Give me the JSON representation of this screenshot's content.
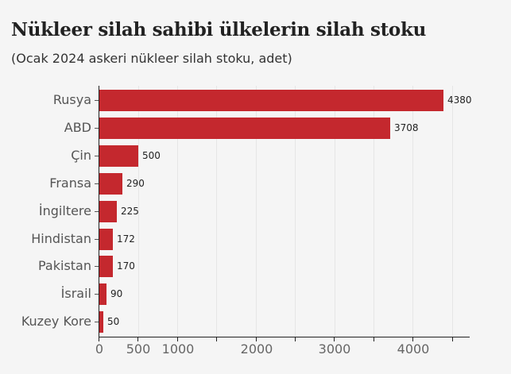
{
  "header": {
    "title": "Nükleer silah sahibi ülkelerin silah stoku",
    "subtitle": "(Ocak 2024 askeri nükleer silah stoku, adet)"
  },
  "chart_data": {
    "type": "bar",
    "orientation": "horizontal",
    "title": "Nükleer silah sahibi ülkelerin silah stoku",
    "subtitle": "(Ocak 2024 askeri nükleer silah stoku, adet)",
    "xlabel": "",
    "ylabel": "",
    "categories": [
      "Rusya",
      "ABD",
      "Çin",
      "Fransa",
      "İngiltere",
      "Hindistan",
      "Pakistan",
      "İsrail",
      "Kuzey Kore"
    ],
    "values": [
      4380,
      3708,
      500,
      290,
      225,
      172,
      170,
      90,
      50
    ],
    "value_labels": [
      "4380",
      "3708",
      "500",
      "290",
      "225",
      "172",
      "170",
      "90",
      "50"
    ],
    "xlim": [
      0,
      4700
    ],
    "x_ticks_labeled": [
      0,
      500,
      1000,
      2000,
      3000,
      4000
    ],
    "x_tick_labels": [
      "0",
      "500",
      "1000",
      "2000",
      "3000",
      "4000"
    ],
    "x_ticks_unlabeled": [
      1500,
      2500,
      3500,
      4500
    ],
    "grid": true,
    "legend": null,
    "bar_color": "#c4282e"
  }
}
